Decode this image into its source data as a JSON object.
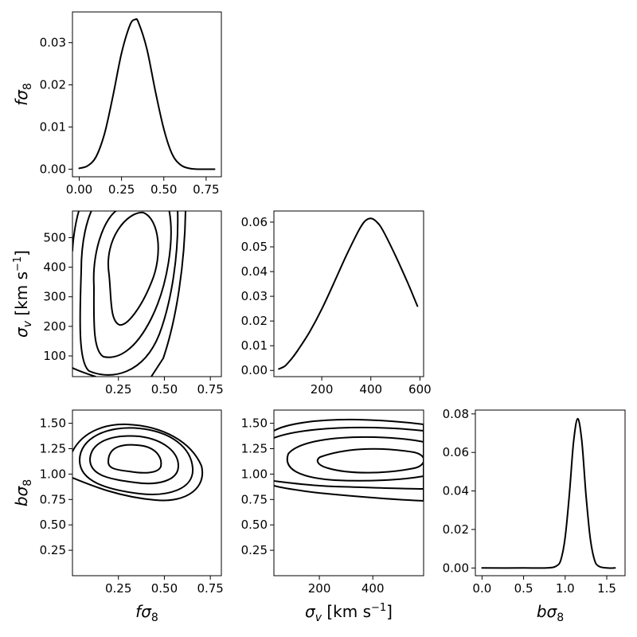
{
  "figure": {
    "layout": "corner-plot-3x3-lower-triangle",
    "line_color": "#000000",
    "background": "#ffffff"
  },
  "labels": {
    "fs8": "fσ8",
    "sv": "σv [km s-1]",
    "bs8": "bσ8"
  },
  "chart_data": [
    {
      "id": "p00",
      "type": "line",
      "xlabel": "",
      "ylabel": "fσ8",
      "xlim": [
        -0.04,
        0.84
      ],
      "ylim": [
        -0.0018,
        0.0373
      ],
      "xticks": [
        "0.00",
        "0.25",
        "0.50",
        "0.75"
      ],
      "yticks": [
        "0.00",
        "0.01",
        "0.02",
        "0.03"
      ],
      "series": [
        {
          "x": [
            0.0,
            0.05,
            0.1,
            0.15,
            0.2,
            0.25,
            0.3,
            0.33,
            0.35,
            0.4,
            0.45,
            0.5,
            0.55,
            0.6,
            0.65,
            0.7,
            0.75,
            0.8
          ],
          "y": [
            0.0002,
            0.0008,
            0.003,
            0.0085,
            0.0175,
            0.0275,
            0.0342,
            0.0355,
            0.0348,
            0.0285,
            0.0185,
            0.0095,
            0.0035,
            0.001,
            0.0002,
            0.0,
            0.0,
            0.0
          ]
        }
      ]
    },
    {
      "id": "p10",
      "type": "contour",
      "xlabel": "",
      "ylabel": "σv [km s-1]",
      "xlim": [
        0.0,
        0.81
      ],
      "ylim": [
        30,
        590
      ],
      "xticks": [
        "0.25",
        "0.50",
        "0.75"
      ],
      "yticks": [
        "100",
        "200",
        "300",
        "400",
        "500"
      ],
      "center": [
        0.345,
        380
      ],
      "levels": [
        "68%",
        "95%",
        "99.7%",
        "99.99%"
      ]
    },
    {
      "id": "p11",
      "type": "line",
      "xlabel": "",
      "ylabel": "",
      "xlim": [
        5,
        615
      ],
      "ylim": [
        -0.0025,
        0.0645
      ],
      "xticks": [
        "200",
        "400",
        "600"
      ],
      "yticks": [
        "0.00",
        "0.01",
        "0.02",
        "0.03",
        "0.04",
        "0.05",
        "0.06"
      ],
      "series": [
        {
          "x": [
            25,
            50,
            75,
            100,
            150,
            200,
            250,
            300,
            350,
            375,
            400,
            425,
            450,
            500,
            550,
            590
          ],
          "y": [
            0.0006,
            0.0018,
            0.0045,
            0.0078,
            0.0155,
            0.0248,
            0.0355,
            0.0465,
            0.0565,
            0.0603,
            0.0615,
            0.06,
            0.0565,
            0.0465,
            0.0355,
            0.026
          ]
        }
      ]
    },
    {
      "id": "p20",
      "type": "contour",
      "xlabel": "fσ8",
      "ylabel": "bσ8",
      "xlim": [
        0.0,
        0.81
      ],
      "ylim": [
        0.0,
        1.63
      ],
      "xticks": [
        "0.25",
        "0.50",
        "0.75"
      ],
      "yticks": [
        "0.25",
        "0.50",
        "0.75",
        "1.00",
        "1.25",
        "1.50"
      ],
      "center": [
        0.35,
        1.12
      ],
      "levels": [
        "68%",
        "95%",
        "99.7%",
        "99.99%"
      ]
    },
    {
      "id": "p21",
      "type": "contour",
      "xlabel": "σv [km s-1]",
      "ylabel": "",
      "xlim": [
        30,
        590
      ],
      "ylim": [
        0.0,
        1.63
      ],
      "xticks": [
        "200",
        "400"
      ],
      "yticks": [
        "0.25",
        "0.50",
        "0.75",
        "1.00",
        "1.25",
        "1.50"
      ],
      "center": [
        400,
        1.1
      ],
      "levels": [
        "68%",
        "95%",
        "99.7%",
        "99.99%"
      ]
    },
    {
      "id": "p22",
      "type": "line",
      "xlabel": "bσ8",
      "ylabel": "",
      "xlim": [
        -0.08,
        1.72
      ],
      "ylim": [
        -0.004,
        0.082
      ],
      "xticks": [
        "0.0",
        "0.5",
        "1.0",
        "1.5"
      ],
      "yticks": [
        "0.00",
        "0.02",
        "0.04",
        "0.06",
        "0.08"
      ],
      "series": [
        {
          "x": [
            0.0,
            0.5,
            0.8,
            0.9,
            0.95,
            1.0,
            1.05,
            1.1,
            1.15,
            1.2,
            1.25,
            1.3,
            1.35,
            1.4,
            1.5,
            1.6
          ],
          "y": [
            0.0,
            0.0,
            0.0001,
            0.0012,
            0.0045,
            0.016,
            0.038,
            0.065,
            0.0775,
            0.066,
            0.038,
            0.016,
            0.0045,
            0.001,
            0.0,
            0.0
          ]
        }
      ]
    }
  ]
}
